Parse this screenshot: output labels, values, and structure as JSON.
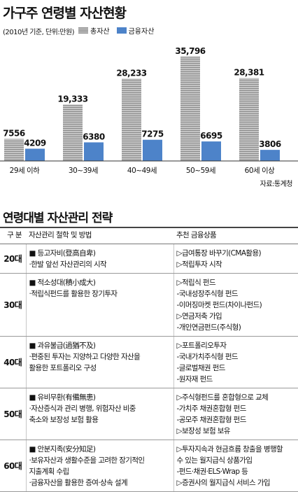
{
  "chart_data": {
    "type": "bar",
    "title": "가구주 연령별 자산현황",
    "subtitle": "(2010년 기준, 단위:만원)",
    "categories": [
      "29세 이하",
      "30~39세",
      "40~49세",
      "50~59세",
      "60세 이상"
    ],
    "series": [
      {
        "name": "총자산",
        "values": [
          7556,
          19333,
          28233,
          35796,
          28381
        ],
        "labels": [
          "7556",
          "19,333",
          "28,233",
          "35,796",
          "28,381"
        ]
      },
      {
        "name": "금융자산",
        "values": [
          4209,
          6380,
          7275,
          6695,
          3806
        ],
        "labels": [
          "4209",
          "6380",
          "7275",
          "6695",
          "3806"
        ]
      }
    ],
    "ylim": [
      0,
      36000
    ],
    "grid": false,
    "legend_position": "top",
    "source": "자료:통계청",
    "colors": {
      "total": "#a5a5a5",
      "financial": "#4d83c9"
    }
  },
  "table": {
    "title": "연령대별 자산관리 전략",
    "headers": [
      "구 분",
      "자산관리 철학 및 방법",
      "추천 금융상품"
    ],
    "rows": [
      {
        "age": "20대",
        "method": [
          "■ 등고자비(登高自卑)",
          "·한발 앞선  자산관리의 시작"
        ],
        "products": [
          "▷급여통장 바꾸기(CMA활용)",
          "▷적립투자 시작"
        ]
      },
      {
        "age": "30대",
        "method": [
          "■ 적소성대(積小成大)",
          "·적립식펀드를  활용한 장기투자"
        ],
        "products": [
          "▷적립식 펀드",
          "  -국내성장주식형 펀드",
          "  -이머징마켓 펀드(차이나펀드)",
          "▷연금저축 가입",
          "  -개인연금펀드(주식형)"
        ]
      },
      {
        "age": "40대",
        "method": [
          "■ 과유불급(過猶不及)",
          "·편중된 투자는  지양하고 다양한 자산을",
          "활용한 포트폴리오 구성"
        ],
        "products": [
          "▷포트폴리오투자",
          "  -국내가치주식형 펀드",
          "  -글로벌채권 펀드",
          "  -원자재 펀드"
        ]
      },
      {
        "age": "50대",
        "method": [
          "■ 유비무환(有備無患)",
          "·자산증식과 관리 병행, 위험자산 비중",
          "축소와 보장성  보험 활용"
        ],
        "products": [
          "▷주식형펀드를 혼합형으로 교체",
          "  -가치주 채권혼합형 펀드",
          "  -공모주 채권혼합형 펀드",
          "▷보장성 보험 보유"
        ]
      },
      {
        "age": "60대",
        "method": [
          "■ 안분지족(安分知足)",
          "·보유자산과 생활수준을 고려한 장기적인",
          "지출계획 수립",
          "·금융자산을 활용한 증여·상속 설계"
        ],
        "products": [
          "▷투자지속과 현금흐름 창출을 병행할",
          "  수 있는 월지급식 상품가입",
          "  -펀드·채권·ELS·Wrap 등",
          "▷증권사의 월지급식 서비스 가입"
        ]
      }
    ]
  }
}
